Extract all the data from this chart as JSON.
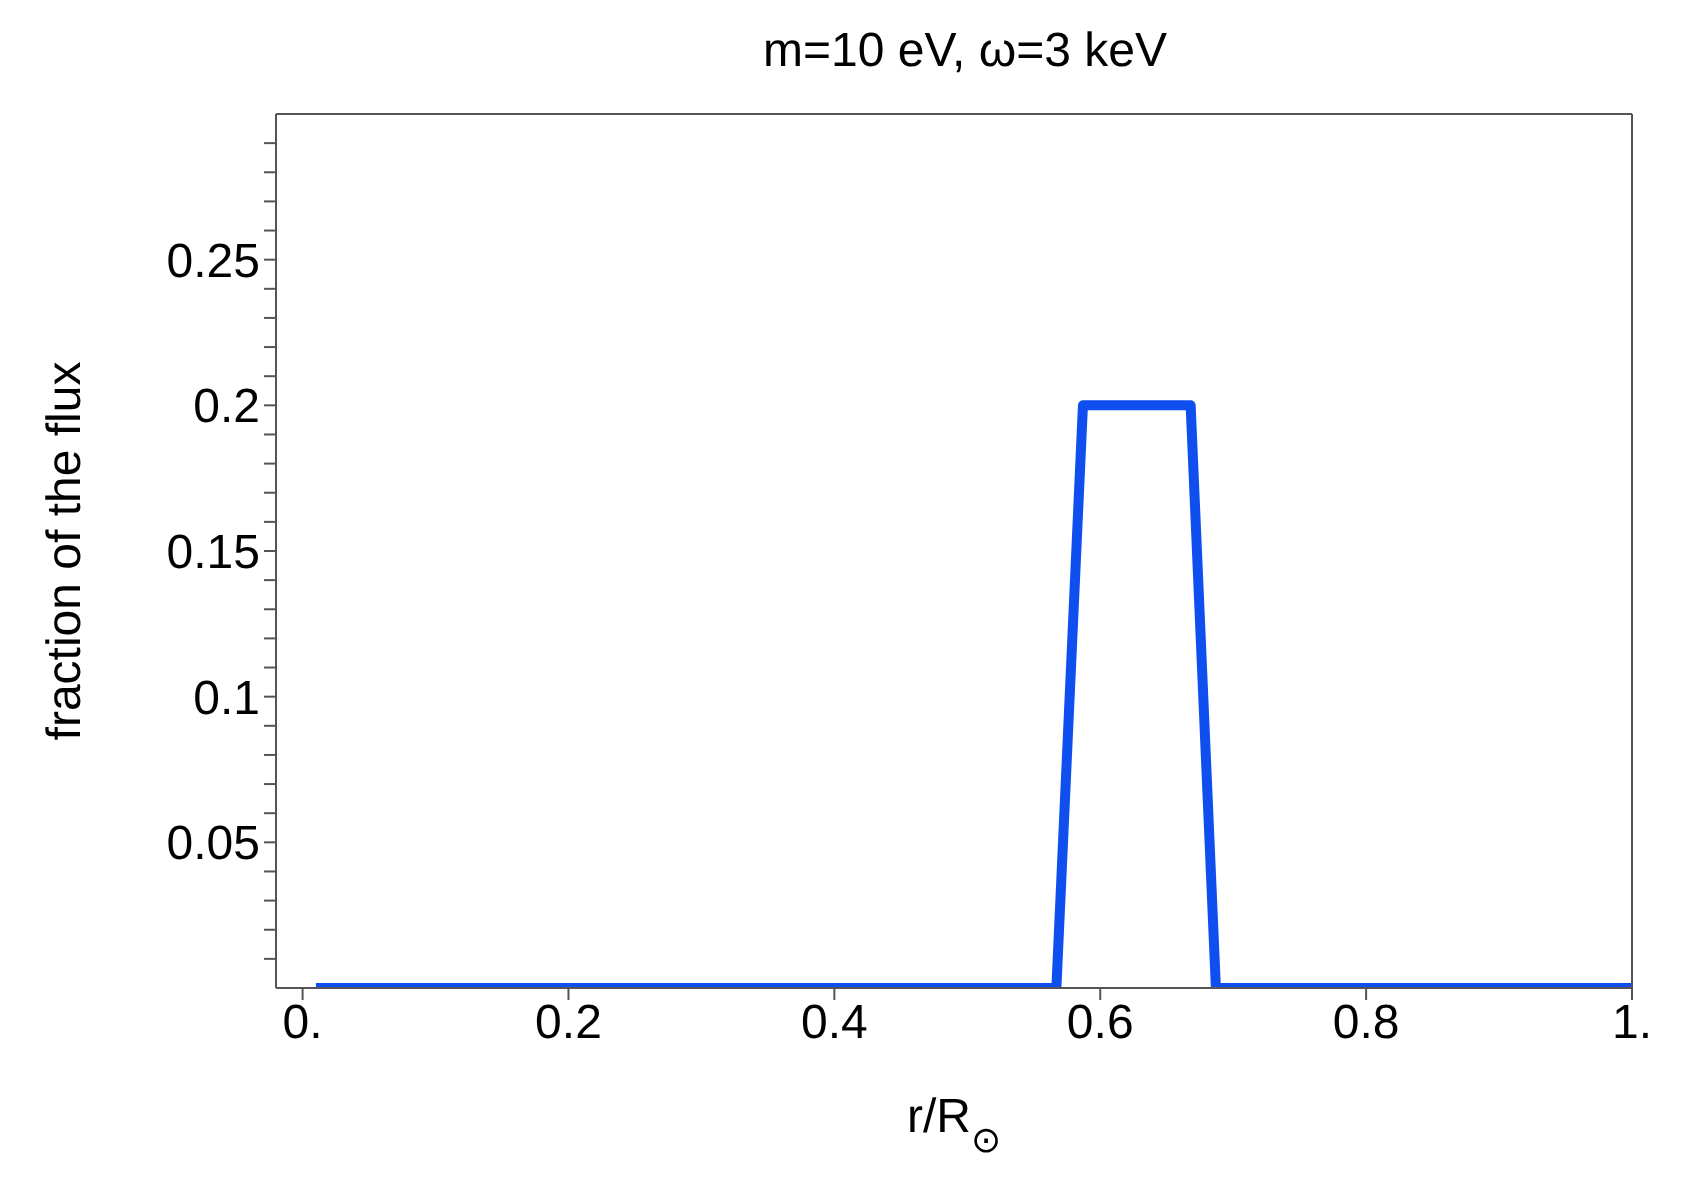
{
  "chart_data": {
    "type": "line",
    "title": "m=10 eV, ω=3 keV",
    "xlabel": "r/R$_{⊙}$",
    "ylabel": "fraction of the flux",
    "x": [
      0.01,
      0.567,
      0.587,
      0.668,
      0.687,
      1.0
    ],
    "series": [
      {
        "color": "#0f4ff0",
        "values": [
          0,
          0,
          0.2,
          0.2,
          0,
          0
        ]
      }
    ],
    "xlim": [
      -0.02,
      1.0
    ],
    "xticks": [
      {
        "value": 0,
        "label": "0."
      },
      0.2,
      0.4,
      0.6,
      0.8,
      {
        "value": 1,
        "label": "1."
      }
    ],
    "ylim": [
      0,
      0.3
    ],
    "yticks": [
      {
        "value": 0.01,
        "label": null
      },
      {
        "value": 0.02,
        "label": null
      },
      {
        "value": 0.03,
        "label": null
      },
      {
        "value": 0.04,
        "label": null
      },
      0.05,
      {
        "value": 0.06,
        "label": null
      },
      {
        "value": 0.07,
        "label": null
      },
      {
        "value": 0.08,
        "label": null
      },
      {
        "value": 0.09,
        "label": null
      },
      0.1,
      {
        "value": 0.11,
        "label": null
      },
      {
        "value": 0.12,
        "label": null
      },
      {
        "value": 0.13,
        "label": null
      },
      {
        "value": 0.14,
        "label": null
      },
      0.15,
      {
        "value": 0.16,
        "label": null
      },
      {
        "value": 0.17,
        "label": null
      },
      {
        "value": 0.18,
        "label": null
      },
      {
        "value": 0.19,
        "label": null
      },
      0.2,
      {
        "value": 0.21,
        "label": null
      },
      {
        "value": 0.22,
        "label": null
      },
      {
        "value": 0.23,
        "label": null
      },
      {
        "value": 0.24,
        "label": null
      },
      0.25,
      {
        "value": 0.26,
        "label": null
      },
      {
        "value": 0.27,
        "label": null
      },
      {
        "value": 0.28,
        "label": null
      },
      {
        "value": 0.29,
        "label": null
      }
    ],
    "grid": false,
    "legend": false,
    "marker": "none",
    "line_style": "solid"
  }
}
